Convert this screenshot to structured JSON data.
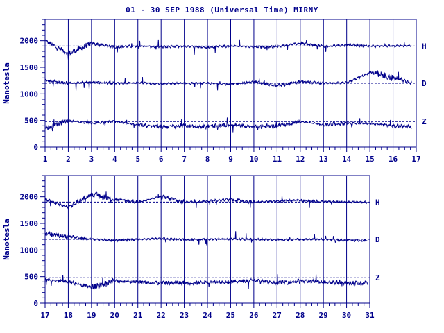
{
  "title": "01 - 30 SEP 1988 (Universal Time) MIRNY",
  "chart_data": [
    {
      "type": "line",
      "ylabel": "Nanotesla",
      "xlabel": "",
      "x_ticks": [
        "1",
        "2",
        "3",
        "4",
        "5",
        "6",
        "7",
        "8",
        "9",
        "10",
        "11",
        "12",
        "13",
        "14",
        "15",
        "16",
        "17"
      ],
      "xlim": [
        1,
        17
      ],
      "ylim": [
        0,
        2400
      ],
      "y_ticks": [
        0,
        500,
        1000,
        1500,
        2000
      ],
      "grid": "vertical day lines",
      "series": [
        {
          "name": "H",
          "baseline": 1900,
          "color": "#00008b",
          "days": [
            1,
            2,
            3,
            4,
            5,
            6,
            7,
            8,
            9,
            10,
            11,
            12,
            13,
            14,
            15,
            16,
            17
          ],
          "values": [
            2000,
            1750,
            1950,
            1880,
            1900,
            1880,
            1900,
            1870,
            1900,
            1880,
            1890,
            1950,
            1890,
            1920,
            1900,
            1900,
            1910
          ]
        },
        {
          "name": "D",
          "baseline": 1200,
          "color": "#00008b",
          "days": [
            1,
            2,
            3,
            4,
            5,
            6,
            7,
            8,
            9,
            10,
            11,
            12,
            13,
            14,
            15,
            16,
            17
          ],
          "values": [
            1250,
            1200,
            1220,
            1200,
            1210,
            1190,
            1200,
            1200,
            1180,
            1230,
            1150,
            1230,
            1200,
            1210,
            1400,
            1300,
            1200
          ]
        },
        {
          "name": "Z",
          "baseline": 480,
          "color": "#00008b",
          "days": [
            1,
            2,
            3,
            4,
            5,
            6,
            7,
            8,
            9,
            10,
            11,
            12,
            13,
            14,
            15,
            16,
            17
          ],
          "values": [
            350,
            500,
            450,
            480,
            420,
            380,
            400,
            380,
            420,
            380,
            400,
            480,
            420,
            450,
            450,
            400,
            380
          ]
        }
      ]
    },
    {
      "type": "line",
      "ylabel": "Nanotesla",
      "xlabel": "",
      "x_ticks": [
        "17",
        "18",
        "19",
        "20",
        "21",
        "22",
        "23",
        "24",
        "25",
        "26",
        "27",
        "28",
        "29",
        "30",
        "31"
      ],
      "xlim": [
        17,
        31
      ],
      "ylim": [
        0,
        2400
      ],
      "y_ticks": [
        0,
        500,
        1000,
        1500,
        2000
      ],
      "grid": "vertical day lines",
      "series": [
        {
          "name": "H",
          "baseline": 1900,
          "color": "#00008b",
          "days": [
            17,
            18,
            19,
            20,
            21,
            22,
            23,
            24,
            25,
            26,
            27,
            28,
            29,
            30,
            31
          ],
          "values": [
            1950,
            1800,
            2050,
            1950,
            1900,
            2000,
            1900,
            1920,
            1950,
            1900,
            1920,
            1930,
            1910,
            1900,
            1900
          ]
        },
        {
          "name": "D",
          "baseline": 1200,
          "color": "#00008b",
          "days": [
            17,
            18,
            19,
            20,
            21,
            22,
            23,
            24,
            25,
            26,
            27,
            28,
            29,
            30,
            31
          ],
          "values": [
            1300,
            1250,
            1200,
            1180,
            1200,
            1220,
            1190,
            1200,
            1210,
            1200,
            1190,
            1200,
            1200,
            1180,
            1180
          ]
        },
        {
          "name": "Z",
          "baseline": 480,
          "color": "#00008b",
          "days": [
            17,
            18,
            19,
            20,
            21,
            22,
            23,
            24,
            25,
            26,
            27,
            28,
            29,
            30,
            31
          ],
          "values": [
            450,
            400,
            300,
            420,
            400,
            380,
            380,
            400,
            400,
            430,
            380,
            420,
            400,
            380,
            380
          ]
        }
      ]
    }
  ]
}
